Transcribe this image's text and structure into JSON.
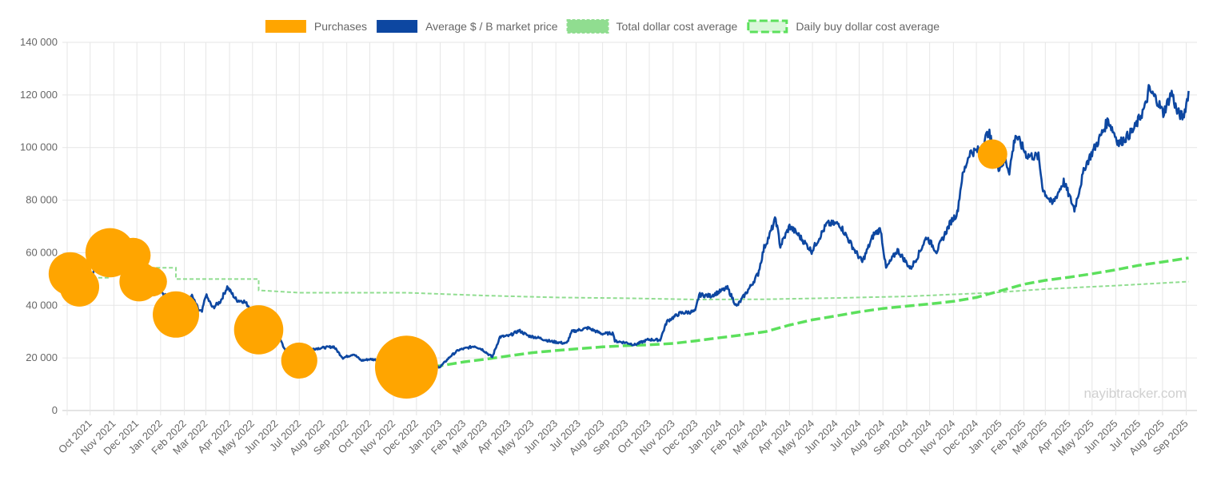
{
  "chart_data": {
    "type": "line",
    "title": "",
    "xlabel": "",
    "ylabel": "",
    "watermark": "nayibtracker.com",
    "ylim": [
      0,
      140000
    ],
    "y_ticks": [
      0,
      20000,
      40000,
      60000,
      80000,
      100000,
      120000,
      140000
    ],
    "y_tick_labels": [
      "0",
      "20 000",
      "40 000",
      "60 000",
      "80 000",
      "100 000",
      "120 000",
      "140 000"
    ],
    "x_range": [
      "2021-09-01",
      "2025-09-15"
    ],
    "x_ticks": [
      "2021-10-01",
      "2021-11-01",
      "2021-12-01",
      "2022-01-01",
      "2022-02-01",
      "2022-03-01",
      "2022-04-01",
      "2022-05-01",
      "2022-06-01",
      "2022-07-01",
      "2022-08-01",
      "2022-09-01",
      "2022-10-01",
      "2022-11-01",
      "2022-12-01",
      "2023-01-01",
      "2023-02-01",
      "2023-03-01",
      "2023-04-01",
      "2023-05-01",
      "2023-06-01",
      "2023-07-01",
      "2023-08-01",
      "2023-09-01",
      "2023-10-01",
      "2023-11-01",
      "2023-12-01",
      "2024-01-01",
      "2024-02-01",
      "2024-03-01",
      "2024-04-01",
      "2024-05-01",
      "2024-06-01",
      "2024-07-01",
      "2024-08-01",
      "2024-09-01",
      "2024-10-01",
      "2024-11-01",
      "2024-12-01",
      "2025-01-01",
      "2025-02-01",
      "2025-03-01",
      "2025-04-01",
      "2025-05-01",
      "2025-06-01",
      "2025-07-01",
      "2025-08-01",
      "2025-09-01"
    ],
    "x_tick_labels": [
      "Oct 2021",
      "Nov 2021",
      "Dec 2021",
      "Jan 2022",
      "Feb 2022",
      "Mar 2022",
      "Apr 2022",
      "May 2022",
      "Jun 2022",
      "Jul 2022",
      "Aug 2022",
      "Sep 2022",
      "Oct 2022",
      "Nov 2022",
      "Dec 2022",
      "Jan 2023",
      "Feb 2023",
      "Mar 2023",
      "Apr 2023",
      "May 2023",
      "Jun 2023",
      "Jul 2023",
      "Aug 2023",
      "Sep 2023",
      "Oct 2023",
      "Nov 2023",
      "Dec 2023",
      "Jan 2024",
      "Feb 2024",
      "Mar 2024",
      "Apr 2024",
      "May 2024",
      "Jun 2024",
      "Jul 2024",
      "Aug 2024",
      "Sep 2024",
      "Oct 2024",
      "Nov 2024",
      "Dec 2024",
      "Jan 2025",
      "Feb 2025",
      "Mar 2025",
      "Apr 2025",
      "May 2025",
      "Jun 2025",
      "Jul 2025",
      "Aug 2025",
      "Sep 2025"
    ],
    "legend_position": "top",
    "grid": true,
    "series": [
      {
        "name": "Purchases",
        "type": "bubble",
        "color": "#ffa500",
        "points": [
          {
            "x": "2021-09-05",
            "y": 52000,
            "size": 4
          },
          {
            "x": "2021-09-17",
            "y": 47000,
            "size": 3
          },
          {
            "x": "2021-10-27",
            "y": 60000,
            "size": 6
          },
          {
            "x": "2021-11-26",
            "y": 59000,
            "size": 2
          },
          {
            "x": "2021-12-04",
            "y": 49000,
            "size": 3
          },
          {
            "x": "2021-12-21",
            "y": 49000,
            "size": 1
          },
          {
            "x": "2022-01-21",
            "y": 36500,
            "size": 5
          },
          {
            "x": "2022-05-09",
            "y": 30700,
            "size": 6
          },
          {
            "x": "2022-07-01",
            "y": 19000,
            "size": 2.2
          },
          {
            "x": "2022-11-18",
            "y": 16500,
            "size": 12
          },
          {
            "x": "2024-12-22",
            "y": 97500,
            "size": 1
          }
        ]
      },
      {
        "name": "Average $ / B market price",
        "type": "line",
        "color": "#0d47a1",
        "points": [
          [
            "2021-09-01",
            48000
          ],
          [
            "2021-09-07",
            52000
          ],
          [
            "2021-09-10",
            46000
          ],
          [
            "2021-09-21",
            43000
          ],
          [
            "2021-09-28",
            41500
          ],
          [
            "2021-10-06",
            54000
          ],
          [
            "2021-10-15",
            59000
          ],
          [
            "2021-10-20",
            64000
          ],
          [
            "2021-10-28",
            60000
          ],
          [
            "2021-11-09",
            67500
          ],
          [
            "2021-11-15",
            64000
          ],
          [
            "2021-11-26",
            56000
          ],
          [
            "2021-12-04",
            49000
          ],
          [
            "2021-12-10",
            47000
          ],
          [
            "2021-12-20",
            46500
          ],
          [
            "2021-12-27",
            51000
          ],
          [
            "2022-01-05",
            44000
          ],
          [
            "2022-01-12",
            43500
          ],
          [
            "2022-01-22",
            36000
          ],
          [
            "2022-02-01",
            38500
          ],
          [
            "2022-02-10",
            44000
          ],
          [
            "2022-02-20",
            38000
          ],
          [
            "2022-02-24",
            37500
          ],
          [
            "2022-03-01",
            44000
          ],
          [
            "2022-03-10",
            39000
          ],
          [
            "2022-03-20",
            41500
          ],
          [
            "2022-03-29",
            47000
          ],
          [
            "2022-04-10",
            42000
          ],
          [
            "2022-04-20",
            41500
          ],
          [
            "2022-04-30",
            38500
          ],
          [
            "2022-05-05",
            36000
          ],
          [
            "2022-05-09",
            31000
          ],
          [
            "2022-05-20",
            29500
          ],
          [
            "2022-05-31",
            31700
          ],
          [
            "2022-06-13",
            22500
          ],
          [
            "2022-06-18",
            19500
          ],
          [
            "2022-06-30",
            19500
          ],
          [
            "2022-07-08",
            21500
          ],
          [
            "2022-07-20",
            23500
          ],
          [
            "2022-07-30",
            23800
          ],
          [
            "2022-08-15",
            24300
          ],
          [
            "2022-08-27",
            20000
          ],
          [
            "2022-09-10",
            21500
          ],
          [
            "2022-09-20",
            19000
          ],
          [
            "2022-10-01",
            19500
          ],
          [
            "2022-10-15",
            19200
          ],
          [
            "2022-10-29",
            20600
          ],
          [
            "2022-11-05",
            21200
          ],
          [
            "2022-11-09",
            16500
          ],
          [
            "2022-11-21",
            15900
          ],
          [
            "2022-12-05",
            17000
          ],
          [
            "2022-12-20",
            16800
          ],
          [
            "2023-01-01",
            16600
          ],
          [
            "2023-01-15",
            20800
          ],
          [
            "2023-01-25",
            23000
          ],
          [
            "2023-02-15",
            24500
          ],
          [
            "2023-02-25",
            23200
          ],
          [
            "2023-03-10",
            20300
          ],
          [
            "2023-03-20",
            28000
          ],
          [
            "2023-04-01",
            28400
          ],
          [
            "2023-04-14",
            30400
          ],
          [
            "2023-04-26",
            28400
          ],
          [
            "2023-05-10",
            27600
          ],
          [
            "2023-05-25",
            26300
          ],
          [
            "2023-06-15",
            25500
          ],
          [
            "2023-06-22",
            30000
          ],
          [
            "2023-07-13",
            31400
          ],
          [
            "2023-07-31",
            29200
          ],
          [
            "2023-08-15",
            29400
          ],
          [
            "2023-08-17",
            26400
          ],
          [
            "2023-09-01",
            25800
          ],
          [
            "2023-09-12",
            25000
          ],
          [
            "2023-09-30",
            27000
          ],
          [
            "2023-10-15",
            26800
          ],
          [
            "2023-10-24",
            33900
          ],
          [
            "2023-11-10",
            37000
          ],
          [
            "2023-11-30",
            37700
          ],
          [
            "2023-12-05",
            44000
          ],
          [
            "2023-12-20",
            43600
          ],
          [
            "2024-01-11",
            46600
          ],
          [
            "2024-01-23",
            39500
          ],
          [
            "2024-02-10",
            47100
          ],
          [
            "2024-02-20",
            52000
          ],
          [
            "2024-02-28",
            62000
          ],
          [
            "2024-03-05",
            66000
          ],
          [
            "2024-03-14",
            73000
          ],
          [
            "2024-03-20",
            62500
          ],
          [
            "2024-04-01",
            70000
          ],
          [
            "2024-04-12",
            67000
          ],
          [
            "2024-04-30",
            60600
          ],
          [
            "2024-05-20",
            71000
          ],
          [
            "2024-06-05",
            71000
          ],
          [
            "2024-06-25",
            61000
          ],
          [
            "2024-07-05",
            56500
          ],
          [
            "2024-07-20",
            67000
          ],
          [
            "2024-07-29",
            69000
          ],
          [
            "2024-08-05",
            54000
          ],
          [
            "2024-08-20",
            61000
          ],
          [
            "2024-09-06",
            54000
          ],
          [
            "2024-09-15",
            58500
          ],
          [
            "2024-09-27",
            66000
          ],
          [
            "2024-10-10",
            60500
          ],
          [
            "2024-10-29",
            72000
          ],
          [
            "2024-11-06",
            75000
          ],
          [
            "2024-11-12",
            88000
          ],
          [
            "2024-11-22",
            98000
          ],
          [
            "2024-12-05",
            99000
          ],
          [
            "2024-12-17",
            106000
          ],
          [
            "2024-12-30",
            92500
          ],
          [
            "2025-01-08",
            95000
          ],
          [
            "2025-01-13",
            91000
          ],
          [
            "2025-01-21",
            105000
          ],
          [
            "2025-02-05",
            97000
          ],
          [
            "2025-02-20",
            96500
          ],
          [
            "2025-02-26",
            84000
          ],
          [
            "2025-03-10",
            78500
          ],
          [
            "2025-03-25",
            87000
          ],
          [
            "2025-04-08",
            76500
          ],
          [
            "2025-04-22",
            93000
          ],
          [
            "2025-05-10",
            103000
          ],
          [
            "2025-05-22",
            110500
          ],
          [
            "2025-06-05",
            101500
          ],
          [
            "2025-06-17",
            104500
          ],
          [
            "2025-06-25",
            107000
          ],
          [
            "2025-07-10",
            116000
          ],
          [
            "2025-07-14",
            122000
          ],
          [
            "2025-07-25",
            118000
          ],
          [
            "2025-08-02",
            113000
          ],
          [
            "2025-08-13",
            121000
          ],
          [
            "2025-08-20",
            113500
          ],
          [
            "2025-08-28",
            111500
          ],
          [
            "2025-09-02",
            118000
          ],
          [
            "2025-09-04",
            121500
          ]
        ]
      },
      {
        "name": "Total dollar cost average",
        "type": "line",
        "dash": "short",
        "color": "#90dd90",
        "points": [
          [
            "2021-09-05",
            52000
          ],
          [
            "2021-09-17",
            50500
          ],
          [
            "2021-10-27",
            54800
          ],
          [
            "2021-11-26",
            54700
          ],
          [
            "2021-12-04",
            54400
          ],
          [
            "2021-12-21",
            54300
          ],
          [
            "2022-01-21",
            50000
          ],
          [
            "2022-05-09",
            45700
          ],
          [
            "2022-07-01",
            44800
          ],
          [
            "2022-11-18",
            44800
          ],
          [
            "2023-03-01",
            43700
          ],
          [
            "2023-06-01",
            43000
          ],
          [
            "2023-09-01",
            42700
          ],
          [
            "2023-12-01",
            42200
          ],
          [
            "2024-03-01",
            42300
          ],
          [
            "2024-06-01",
            42800
          ],
          [
            "2024-09-01",
            43400
          ],
          [
            "2024-12-22",
            44800
          ],
          [
            "2025-03-01",
            46200
          ],
          [
            "2025-06-01",
            47500
          ],
          [
            "2025-09-04",
            49000
          ]
        ]
      },
      {
        "name": "Daily buy dollar cost average",
        "type": "line",
        "dash": "long",
        "color": "#5ce05c",
        "points": [
          [
            "2022-11-18",
            16500
          ],
          [
            "2023-01-01",
            17000
          ],
          [
            "2023-02-01",
            18500
          ],
          [
            "2023-03-01",
            19500
          ],
          [
            "2023-04-01",
            20800
          ],
          [
            "2023-05-01",
            22000
          ],
          [
            "2023-06-01",
            22800
          ],
          [
            "2023-07-01",
            23500
          ],
          [
            "2023-08-01",
            24200
          ],
          [
            "2023-09-01",
            24700
          ],
          [
            "2023-10-01",
            25000
          ],
          [
            "2023-11-01",
            25500
          ],
          [
            "2023-12-01",
            26500
          ],
          [
            "2024-01-01",
            27700
          ],
          [
            "2024-02-01",
            28800
          ],
          [
            "2024-03-01",
            30000
          ],
          [
            "2024-04-01",
            32500
          ],
          [
            "2024-05-01",
            34500
          ],
          [
            "2024-06-01",
            36000
          ],
          [
            "2024-07-01",
            37500
          ],
          [
            "2024-08-01",
            38800
          ],
          [
            "2024-09-01",
            39700
          ],
          [
            "2024-10-01",
            40500
          ],
          [
            "2024-11-01",
            41500
          ],
          [
            "2024-12-01",
            43000
          ],
          [
            "2025-01-01",
            45500
          ],
          [
            "2025-02-01",
            48000
          ],
          [
            "2025-03-01",
            49500
          ],
          [
            "2025-04-01",
            50700
          ],
          [
            "2025-05-01",
            52000
          ],
          [
            "2025-06-01",
            53500
          ],
          [
            "2025-07-01",
            55200
          ],
          [
            "2025-08-01",
            56500
          ],
          [
            "2025-09-04",
            58000
          ]
        ]
      }
    ]
  }
}
